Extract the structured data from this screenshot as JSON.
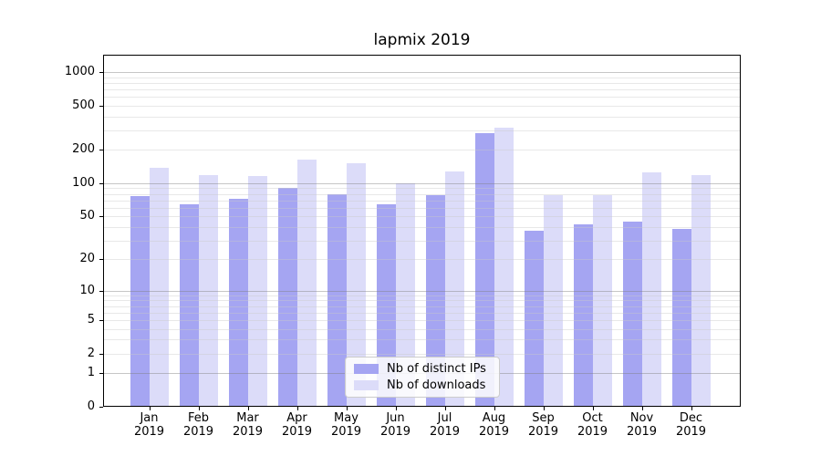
{
  "figure": {
    "title": "lapmix 2019"
  },
  "chart_data": {
    "type": "bar",
    "title": "lapmix 2019",
    "yscale": "log1p",
    "ylim": [
      0,
      1430
    ],
    "y_ticks": [
      0,
      1,
      2,
      5,
      10,
      20,
      50,
      100,
      200,
      500,
      1000
    ],
    "grid": {
      "major": [
        1,
        10,
        100,
        1000
      ],
      "minor_mantissas": [
        2,
        3,
        4,
        5,
        6,
        7,
        8,
        9
      ],
      "drawn_over_bars": true
    },
    "categories": [
      "Jan",
      "Feb",
      "Mar",
      "Apr",
      "May",
      "Jun",
      "Jul",
      "Aug",
      "Sep",
      "Oct",
      "Nov",
      "Dec"
    ],
    "year": "2019",
    "series": [
      {
        "name": "Nb of distinct IPs",
        "color": "#a5a5f2",
        "values": [
          77,
          64,
          72,
          90,
          80,
          64,
          78,
          280,
          37,
          42,
          45,
          38
        ]
      },
      {
        "name": "Nb of downloads",
        "color": "#dcdcf9",
        "values": [
          137,
          118,
          117,
          164,
          150,
          100,
          128,
          315,
          78,
          78,
          125,
          118
        ]
      }
    ],
    "legend_position": "lower center"
  },
  "colors": {
    "grid_major": "rgba(128,128,128,0.45)",
    "grid_minor": "rgba(200,200,200,0.42)",
    "spine": "#000000",
    "background": "#ffffff"
  }
}
